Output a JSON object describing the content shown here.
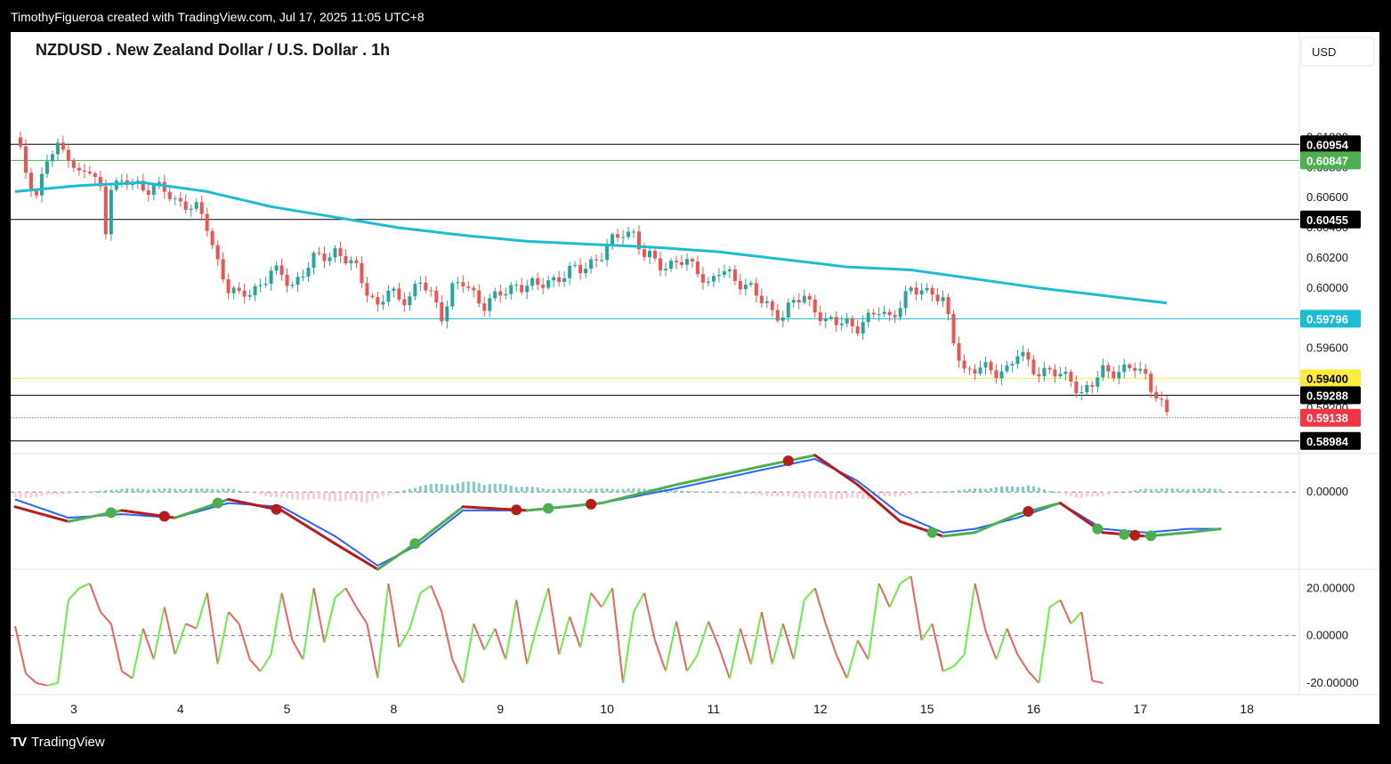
{
  "header": {
    "attribution": "TimothyFigueroa created with TradingView.com, Jul 17, 2025 11:05 UTC+8"
  },
  "footer": {
    "logo_icon": "tradingview-logo-icon",
    "brand": "TradingView"
  },
  "chart": {
    "title": "NZDUSD . New Zealand Dollar / U.S. Dollar . 1h",
    "currency_button": "USD"
  },
  "colors": {
    "up": "#26a69a",
    "down": "#ef5350",
    "ma": "#1cbcd2",
    "macd_fast": "#2962ff",
    "macd_slow_up": "#4caf50",
    "macd_slow_down": "#b71c1c",
    "osc_up": "#66ee44",
    "osc_down": "#f06060"
  },
  "chart_data": [
    {
      "type": "candlestick",
      "name": "price",
      "x_labels": [
        "3",
        "4",
        "5",
        "8",
        "9",
        "10",
        "11",
        "12",
        "15",
        "16",
        "17",
        "18"
      ],
      "y_ticks": [
        "0.61000",
        "0.60800",
        "0.60600",
        "0.60400",
        "0.60200",
        "0.60000",
        "0.59600",
        "0.59200"
      ],
      "ylim": [
        0.589,
        0.6144
      ],
      "close_path": [
        [
          0,
          0.61
        ],
        [
          2,
          0.6078
        ],
        [
          4,
          0.6062
        ],
        [
          6,
          0.6085
        ],
        [
          8,
          0.6092
        ],
        [
          10,
          0.609
        ],
        [
          12,
          0.6075
        ],
        [
          14,
          0.6077
        ],
        [
          16,
          0.6065
        ],
        [
          17,
          0.604
        ],
        [
          18,
          0.607
        ],
        [
          20,
          0.6068
        ],
        [
          22,
          0.607
        ],
        [
          24,
          0.6067
        ],
        [
          26,
          0.6068
        ],
        [
          28,
          0.6063
        ],
        [
          30,
          0.6058
        ],
        [
          32,
          0.6057
        ],
        [
          34,
          0.6052
        ],
        [
          36,
          0.604
        ],
        [
          38,
          0.6018
        ],
        [
          40,
          0.6
        ],
        [
          42,
          0.5993
        ],
        [
          44,
          0.5998
        ],
        [
          46,
          0.6003
        ],
        [
          48,
          0.601
        ],
        [
          50,
          0.6008
        ],
        [
          52,
          0.6003
        ],
        [
          54,
          0.601
        ],
        [
          56,
          0.6018
        ],
        [
          58,
          0.6022
        ],
        [
          60,
          0.6025
        ],
        [
          62,
          0.6018
        ],
        [
          64,
          0.6012
        ],
        [
          66,
          0.6
        ],
        [
          68,
          0.5987
        ],
        [
          70,
          0.5997
        ],
        [
          72,
          0.5993
        ],
        [
          74,
          0.5996
        ],
        [
          76,
          0.6003
        ],
        [
          78,
          0.5995
        ],
        [
          80,
          0.5983
        ],
        [
          82,
          0.6
        ],
        [
          84,
          0.6002
        ],
        [
          86,
          0.5996
        ],
        [
          88,
          0.599
        ],
        [
          90,
          0.5993
        ],
        [
          92,
          0.5997
        ],
        [
          94,
          0.6003
        ],
        [
          96,
          0.6002
        ],
        [
          98,
          0.6
        ],
        [
          100,
          0.6005
        ],
        [
          102,
          0.6008
        ],
        [
          104,
          0.601
        ],
        [
          106,
          0.6012
        ],
        [
          108,
          0.6018
        ],
        [
          110,
          0.6022
        ],
        [
          112,
          0.603
        ],
        [
          114,
          0.6038
        ],
        [
          116,
          0.6037
        ],
        [
          118,
          0.602
        ],
        [
          120,
          0.6018
        ],
        [
          122,
          0.6015
        ],
        [
          124,
          0.6018
        ],
        [
          126,
          0.6015
        ],
        [
          128,
          0.6013
        ],
        [
          130,
          0.6003
        ],
        [
          132,
          0.601
        ],
        [
          134,
          0.6008
        ],
        [
          136,
          0.6005
        ],
        [
          138,
          0.6
        ],
        [
          140,
          0.599
        ],
        [
          142,
          0.5985
        ],
        [
          144,
          0.5983
        ],
        [
          146,
          0.599
        ],
        [
          148,
          0.5993
        ],
        [
          150,
          0.5988
        ],
        [
          152,
          0.5977
        ],
        [
          154,
          0.5976
        ],
        [
          156,
          0.5978
        ],
        [
          158,
          0.5975
        ],
        [
          160,
          0.5978
        ],
        [
          162,
          0.5985
        ],
        [
          164,
          0.5982
        ],
        [
          166,
          0.5988
        ],
        [
          168,
          0.5997
        ],
        [
          170,
          0.6
        ],
        [
          172,
          0.5998
        ],
        [
          174,
          0.599
        ],
        [
          176,
          0.5965
        ],
        [
          178,
          0.5946
        ],
        [
          180,
          0.5946
        ],
        [
          182,
          0.5945
        ],
        [
          184,
          0.5945
        ],
        [
          186,
          0.5947
        ],
        [
          188,
          0.5955
        ],
        [
          190,
          0.595
        ],
        [
          192,
          0.5945
        ],
        [
          194,
          0.5945
        ],
        [
          196,
          0.594
        ],
        [
          198,
          0.5941
        ],
        [
          200,
          0.593
        ],
        [
          202,
          0.5935
        ],
        [
          204,
          0.5945
        ],
        [
          206,
          0.5946
        ],
        [
          208,
          0.5945
        ],
        [
          210,
          0.5946
        ],
        [
          212,
          0.5942
        ],
        [
          214,
          0.593
        ],
        [
          216,
          0.5914
        ]
      ],
      "ma_path": [
        [
          0,
          0.6064
        ],
        [
          12,
          0.6068
        ],
        [
          24,
          0.607
        ],
        [
          36,
          0.6064
        ],
        [
          48,
          0.6054
        ],
        [
          60,
          0.6047
        ],
        [
          72,
          0.604
        ],
        [
          84,
          0.6035
        ],
        [
          96,
          0.6031
        ],
        [
          108,
          0.6029
        ],
        [
          120,
          0.6027
        ],
        [
          132,
          0.6024
        ],
        [
          144,
          0.6019
        ],
        [
          156,
          0.6014
        ],
        [
          168,
          0.6012
        ],
        [
          180,
          0.6006
        ],
        [
          192,
          0.6
        ],
        [
          204,
          0.5995
        ],
        [
          216,
          0.599
        ]
      ],
      "price_lines": [
        {
          "label": "0.60954",
          "value": 0.60954,
          "color": "#000000"
        },
        {
          "label": "0.60847",
          "value": 0.60847,
          "color": "#4caf50"
        },
        {
          "label": "0.60455",
          "value": 0.60455,
          "color": "#000000"
        },
        {
          "label": "0.59796",
          "value": 0.59796,
          "color": "#1cbcd2"
        },
        {
          "label": "0.59400",
          "value": 0.594,
          "color": "#ffeb3b"
        },
        {
          "label": "0.59288",
          "value": 0.59288,
          "color": "#000000"
        },
        {
          "label": "0.59138",
          "value": 0.59138,
          "color": "#f23645"
        },
        {
          "label": "0.58984",
          "value": 0.58984,
          "color": "#000000"
        }
      ]
    },
    {
      "type": "macd",
      "name": "macd",
      "y_ticks": [
        "0.00000"
      ],
      "ylim": [
        -0.002,
        0.0009
      ],
      "fast": [
        [
          0,
          -0.0002
        ],
        [
          10,
          -0.0007
        ],
        [
          20,
          -0.0006
        ],
        [
          30,
          -0.0007
        ],
        [
          40,
          -0.0003
        ],
        [
          50,
          -0.0004
        ],
        [
          60,
          -0.0012
        ],
        [
          68,
          -0.002
        ],
        [
          76,
          -0.0014
        ],
        [
          84,
          -0.0005
        ],
        [
          96,
          -0.0005
        ],
        [
          110,
          -0.0003
        ],
        [
          124,
          0.0001
        ],
        [
          140,
          0.0006
        ],
        [
          150,
          0.0009
        ],
        [
          158,
          0.0003
        ],
        [
          166,
          -0.0006
        ],
        [
          174,
          -0.0011
        ],
        [
          180,
          -0.001
        ],
        [
          188,
          -0.0007
        ],
        [
          196,
          -0.0003
        ],
        [
          204,
          -0.001
        ],
        [
          212,
          -0.0011
        ],
        [
          220,
          -0.001
        ],
        [
          226,
          -0.001
        ]
      ],
      "slow": [
        [
          0,
          -0.0004
        ],
        [
          10,
          -0.0008
        ],
        [
          20,
          -0.0005
        ],
        [
          30,
          -0.0007
        ],
        [
          40,
          -0.0002
        ],
        [
          50,
          -0.0005
        ],
        [
          60,
          -0.0014
        ],
        [
          68,
          -0.0021
        ],
        [
          76,
          -0.0013
        ],
        [
          84,
          -0.0004
        ],
        [
          96,
          -0.0005
        ],
        [
          110,
          -0.0003
        ],
        [
          124,
          0.0002
        ],
        [
          140,
          0.0007
        ],
        [
          150,
          0.001
        ],
        [
          158,
          0.0002
        ],
        [
          166,
          -0.0008
        ],
        [
          174,
          -0.0012
        ],
        [
          180,
          -0.0011
        ],
        [
          188,
          -0.0006
        ],
        [
          196,
          -0.0003
        ],
        [
          204,
          -0.0011
        ],
        [
          212,
          -0.0012
        ],
        [
          220,
          -0.0011
        ],
        [
          226,
          -0.001
        ]
      ],
      "cross_up": [
        18,
        38,
        75,
        100,
        172,
        203,
        208,
        213
      ],
      "cross_down": [
        28,
        49,
        94,
        108,
        145,
        190,
        210
      ],
      "hist": [
        [
          0,
          -0.0002
        ],
        [
          20,
          0.0001
        ],
        [
          40,
          0.0001
        ],
        [
          50,
          -0.0002
        ],
        [
          66,
          -0.0003
        ],
        [
          76,
          0.0002
        ],
        [
          86,
          0.0003
        ],
        [
          100,
          0.0001
        ],
        [
          120,
          0.0001
        ],
        [
          140,
          -0.0001
        ],
        [
          150,
          -0.0002
        ],
        [
          160,
          -0.0002
        ],
        [
          180,
          0.0001
        ],
        [
          190,
          0.0002
        ],
        [
          200,
          -0.0002
        ],
        [
          212,
          0.0001
        ],
        [
          226,
          0.0001
        ]
      ]
    },
    {
      "type": "line",
      "name": "oscillator",
      "y_ticks": [
        "20.00000",
        "0.00000",
        "-20.00000"
      ],
      "ylim": [
        -23.0,
        25.0
      ],
      "values": [
        [
          0,
          4
        ],
        [
          2,
          -16
        ],
        [
          4,
          -20
        ],
        [
          6,
          -21
        ],
        [
          8,
          -20
        ],
        [
          10,
          15
        ],
        [
          12,
          20
        ],
        [
          14,
          22
        ],
        [
          16,
          10
        ],
        [
          18,
          5
        ],
        [
          20,
          -15
        ],
        [
          22,
          -18
        ],
        [
          24,
          3
        ],
        [
          26,
          -10
        ],
        [
          28,
          12
        ],
        [
          30,
          -8
        ],
        [
          32,
          5
        ],
        [
          34,
          3
        ],
        [
          36,
          18
        ],
        [
          38,
          -12
        ],
        [
          40,
          10
        ],
        [
          42,
          5
        ],
        [
          44,
          -10
        ],
        [
          46,
          -15
        ],
        [
          48,
          -8
        ],
        [
          50,
          18
        ],
        [
          52,
          -2
        ],
        [
          54,
          -10
        ],
        [
          56,
          20
        ],
        [
          58,
          -3
        ],
        [
          60,
          16
        ],
        [
          62,
          20
        ],
        [
          64,
          12
        ],
        [
          66,
          5
        ],
        [
          68,
          -18
        ],
        [
          70,
          22
        ],
        [
          72,
          -5
        ],
        [
          74,
          3
        ],
        [
          76,
          18
        ],
        [
          78,
          21
        ],
        [
          80,
          10
        ],
        [
          82,
          -10
        ],
        [
          84,
          -20
        ],
        [
          86,
          5
        ],
        [
          88,
          -6
        ],
        [
          90,
          3
        ],
        [
          92,
          -10
        ],
        [
          94,
          15
        ],
        [
          96,
          -12
        ],
        [
          98,
          5
        ],
        [
          100,
          20
        ],
        [
          102,
          -8
        ],
        [
          104,
          8
        ],
        [
          106,
          -5
        ],
        [
          108,
          18
        ],
        [
          110,
          12
        ],
        [
          112,
          20
        ],
        [
          114,
          -20
        ],
        [
          116,
          10
        ],
        [
          118,
          18
        ],
        [
          120,
          -2
        ],
        [
          122,
          -15
        ],
        [
          124,
          6
        ],
        [
          126,
          -15
        ],
        [
          128,
          -8
        ],
        [
          130,
          6
        ],
        [
          132,
          -5
        ],
        [
          134,
          -18
        ],
        [
          136,
          3
        ],
        [
          138,
          -12
        ],
        [
          140,
          10
        ],
        [
          142,
          -12
        ],
        [
          144,
          5
        ],
        [
          146,
          -10
        ],
        [
          148,
          15
        ],
        [
          150,
          20
        ],
        [
          152,
          5
        ],
        [
          154,
          -8
        ],
        [
          156,
          -18
        ],
        [
          158,
          -2
        ],
        [
          160,
          -10
        ],
        [
          162,
          22
        ],
        [
          164,
          12
        ],
        [
          166,
          22
        ],
        [
          168,
          25
        ],
        [
          170,
          -2
        ],
        [
          172,
          5
        ],
        [
          174,
          -15
        ],
        [
          176,
          -13
        ],
        [
          178,
          -8
        ],
        [
          180,
          22
        ],
        [
          182,
          2
        ],
        [
          184,
          -10
        ],
        [
          186,
          3
        ],
        [
          188,
          -8
        ],
        [
          190,
          -15
        ],
        [
          192,
          -20
        ],
        [
          194,
          12
        ],
        [
          196,
          15
        ],
        [
          198,
          5
        ],
        [
          200,
          10
        ],
        [
          202,
          -19
        ],
        [
          204,
          -20
        ]
      ]
    }
  ]
}
